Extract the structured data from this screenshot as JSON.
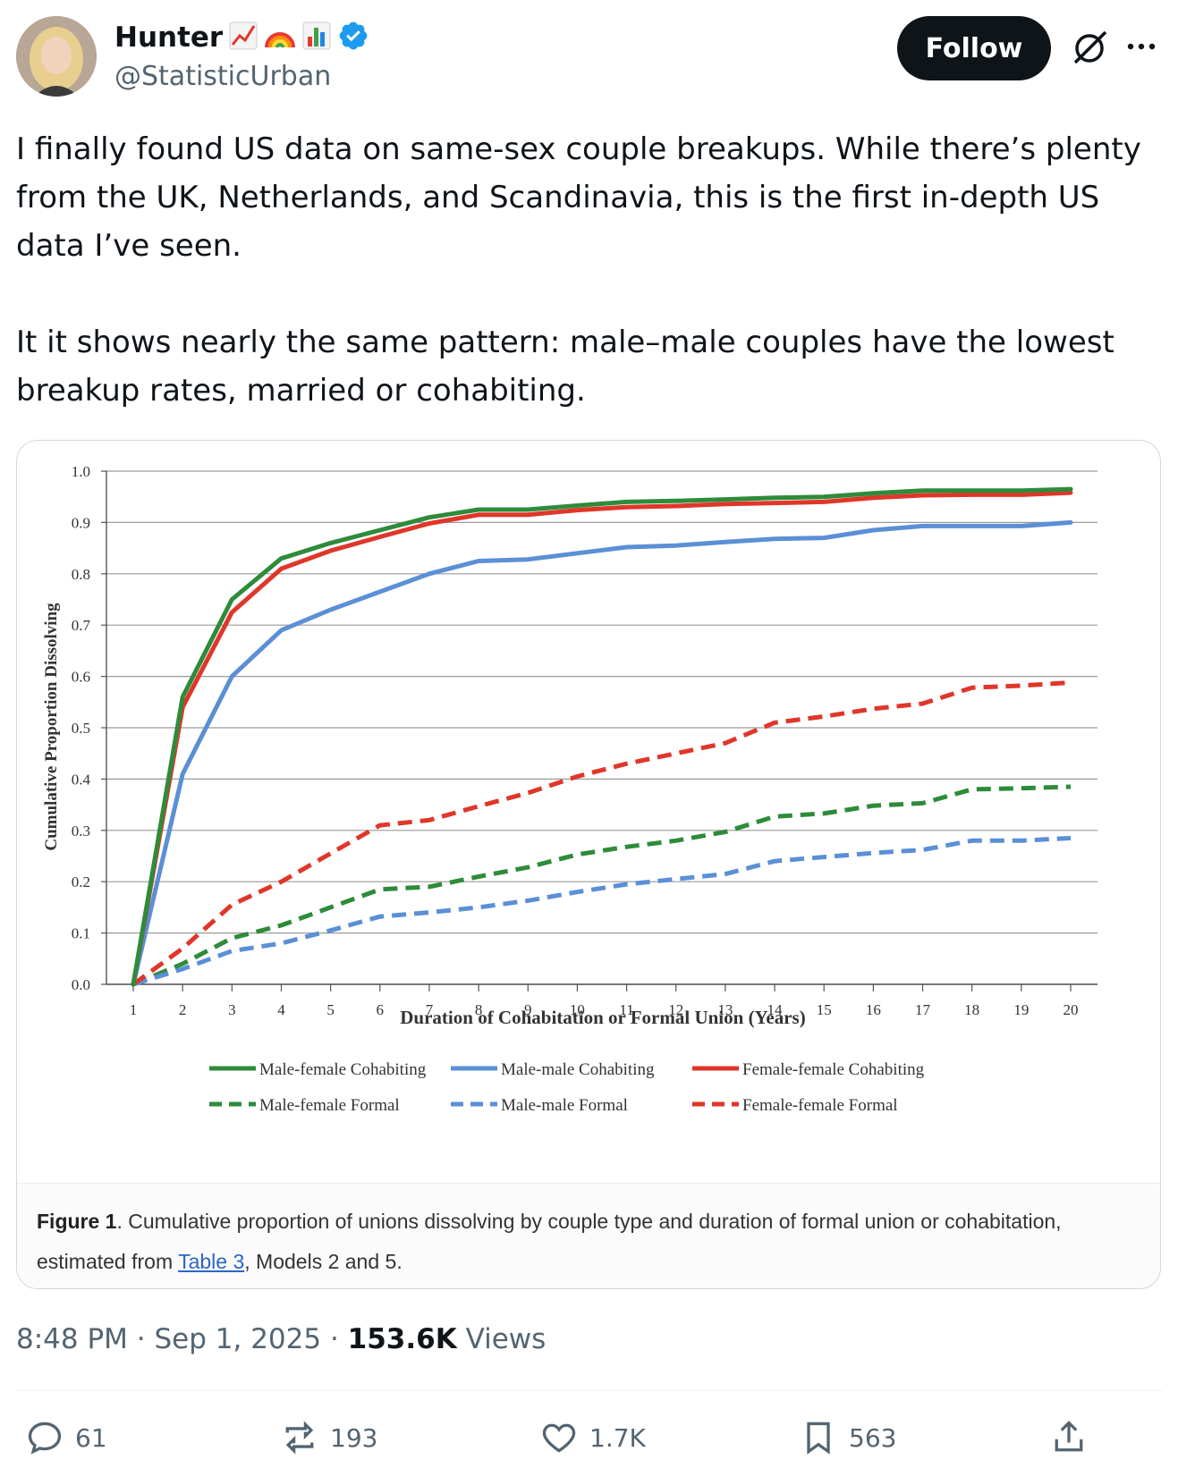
{
  "user": {
    "display_name": "Hunter",
    "badges": [
      "chart-increasing-emoji",
      "rainbow-emoji",
      "bar-chart-emoji",
      "verified-badge-icon"
    ],
    "handle": "@StatisticUrban"
  },
  "follow_label": "Follow",
  "tweet": {
    "paragraph1": "I finally found US data on same-sex couple breakups. While there’s plenty from the UK, Netherlands, and Scandinavia, this is the first in-depth US data I’ve seen.",
    "paragraph2": "It it shows nearly the same pattern: male–male couples have the lowest breakup rates, married or cohabiting."
  },
  "figure_caption": {
    "label": "Figure 1",
    "text_before_link": ". Cumulative proportion of unions dissolving by couple type and duration of formal union or cohabitation, estimated from ",
    "link_text": "Table 3",
    "text_after_link": ", Models 2 and 5."
  },
  "meta": {
    "time": "8:48 PM",
    "date": "Sep 1, 2025",
    "views_count": "153.6K",
    "views_label": "Views"
  },
  "actions": {
    "replies": "61",
    "reposts": "193",
    "likes": "1.7K",
    "bookmarks": "563"
  },
  "colors": {
    "green": "#2e8b3a",
    "blue": "#5b8fd6",
    "red": "#e0362a",
    "follow_bg": "#0f1419",
    "verified": "#1d9bf0"
  },
  "chart_data": {
    "type": "line",
    "title": "",
    "xlabel": "Duration of Cohabitation or Formal Union (Years)",
    "ylabel": "Cumulative Proportion Dissolving",
    "xlim": [
      1,
      20
    ],
    "ylim": [
      0,
      1.0
    ],
    "y_ticks": [
      "0.0",
      "0.1",
      "0.2",
      "0.3",
      "0.4",
      "0.5",
      "0.6",
      "0.7",
      "0.8",
      "0.9",
      "1.0"
    ],
    "x": [
      1,
      2,
      3,
      4,
      5,
      6,
      7,
      8,
      9,
      10,
      11,
      12,
      13,
      14,
      15,
      16,
      17,
      18,
      19,
      20
    ],
    "grid": true,
    "legend_position": "bottom",
    "series": [
      {
        "name": "Male-female Cohabiting",
        "color": "#2e8b3a",
        "dash": false,
        "values": [
          0.0,
          0.56,
          0.75,
          0.83,
          0.86,
          0.885,
          0.91,
          0.925,
          0.925,
          0.933,
          0.94,
          0.942,
          0.945,
          0.948,
          0.95,
          0.957,
          0.962,
          0.962,
          0.962,
          0.965
        ]
      },
      {
        "name": "Male-male Cohabiting",
        "color": "#5b8fd6",
        "dash": false,
        "values": [
          0.0,
          0.41,
          0.6,
          0.69,
          0.73,
          0.765,
          0.8,
          0.825,
          0.828,
          0.84,
          0.852,
          0.855,
          0.862,
          0.868,
          0.87,
          0.885,
          0.893,
          0.893,
          0.893,
          0.9
        ]
      },
      {
        "name": "Female-female Cohabiting",
        "color": "#e0362a",
        "dash": false,
        "values": [
          0.0,
          0.54,
          0.725,
          0.81,
          0.845,
          0.872,
          0.898,
          0.915,
          0.915,
          0.924,
          0.93,
          0.932,
          0.936,
          0.938,
          0.94,
          0.948,
          0.953,
          0.954,
          0.954,
          0.958
        ]
      },
      {
        "name": "Male-female Formal",
        "color": "#2e8b3a",
        "dash": true,
        "values": [
          0.0,
          0.04,
          0.09,
          0.115,
          0.15,
          0.185,
          0.19,
          0.21,
          0.228,
          0.253,
          0.268,
          0.28,
          0.297,
          0.327,
          0.333,
          0.348,
          0.353,
          0.38,
          0.382,
          0.385
        ]
      },
      {
        "name": "Male-male Formal",
        "color": "#5b8fd6",
        "dash": true,
        "values": [
          0.0,
          0.03,
          0.065,
          0.08,
          0.105,
          0.132,
          0.14,
          0.15,
          0.163,
          0.18,
          0.195,
          0.205,
          0.215,
          0.24,
          0.248,
          0.256,
          0.262,
          0.28,
          0.28,
          0.285
        ]
      },
      {
        "name": "Female-female Formal",
        "color": "#e0362a",
        "dash": true,
        "values": [
          0.0,
          0.07,
          0.155,
          0.2,
          0.255,
          0.31,
          0.32,
          0.347,
          0.373,
          0.405,
          0.43,
          0.45,
          0.47,
          0.51,
          0.522,
          0.537,
          0.547,
          0.578,
          0.582,
          0.588
        ]
      }
    ]
  }
}
